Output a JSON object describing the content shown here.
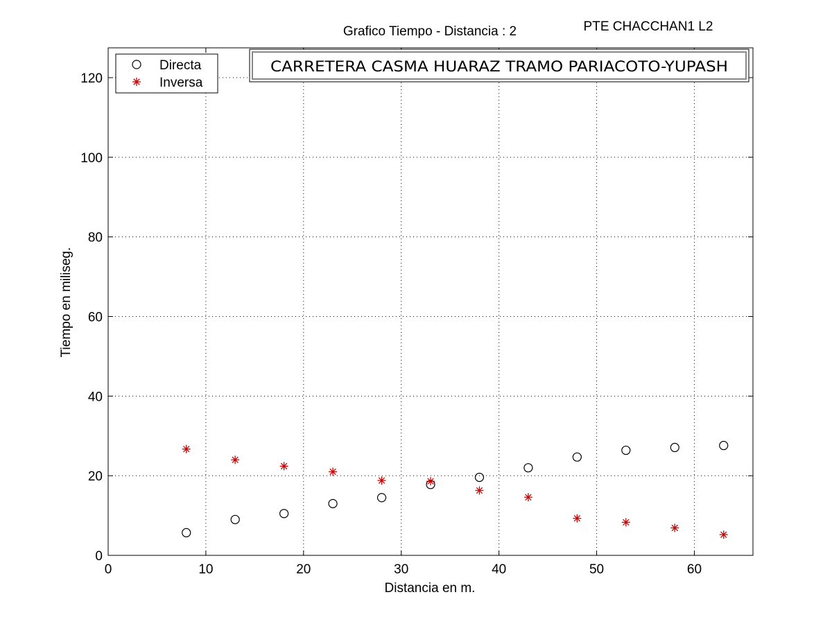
{
  "chart_data": {
    "type": "scatter",
    "title": "Grafico Tiempo - Distancia :  2",
    "header_right": "PTE CHACCHAN1 L2",
    "banner": "CARRETERA CASMA HUARAZ TRAMO PARIACOTO-YUPASH",
    "xlabel": "Distancia en m.",
    "ylabel": "Tiempo en miliseg.",
    "xlim": [
      0,
      66
    ],
    "ylim": [
      0,
      120
    ],
    "x_ticks": [
      0,
      10,
      20,
      30,
      40,
      50,
      60
    ],
    "y_ticks": [
      0,
      20,
      40,
      60,
      80,
      100,
      120
    ],
    "grid": true,
    "legend_position": "top-left",
    "series": [
      {
        "name": "Directa",
        "marker": "circle",
        "color": "#000000",
        "x": [
          8,
          13,
          18,
          23,
          28,
          33,
          38,
          43,
          48,
          53,
          58,
          63
        ],
        "y": [
          5.7,
          9.0,
          10.5,
          13.0,
          14.5,
          17.8,
          19.6,
          22.0,
          24.7,
          26.4,
          27.1,
          27.6
        ]
      },
      {
        "name": "Inversa",
        "marker": "asterisk",
        "color": "#cc0000",
        "x": [
          8,
          13,
          18,
          23,
          28,
          33,
          38,
          43,
          48,
          53,
          58,
          63
        ],
        "y": [
          26.7,
          24.0,
          22.4,
          21.0,
          18.8,
          18.6,
          16.3,
          14.6,
          9.3,
          8.3,
          6.9,
          5.2
        ]
      }
    ]
  }
}
